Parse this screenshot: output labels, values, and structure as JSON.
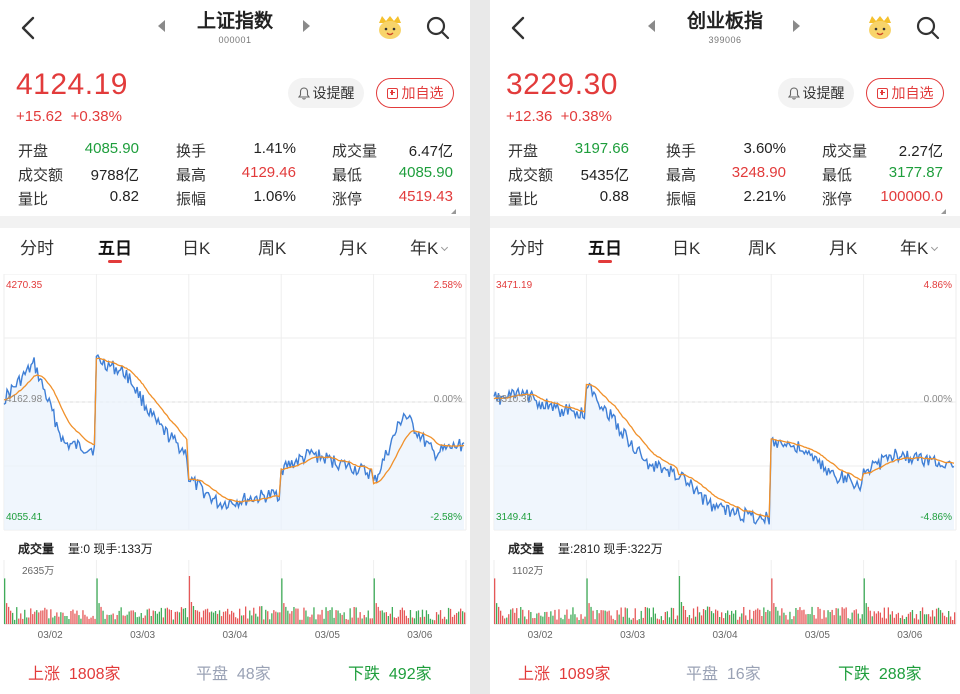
{
  "panels": [
    {
      "title": "上证指数",
      "code": "000001",
      "price": "4124.19",
      "change": "+15.62",
      "change_pct": "+0.38%",
      "remind_label": "设提醒",
      "addfav_label": "加自选",
      "stats": [
        {
          "label": "开盘",
          "value": "4085.90",
          "color": "green"
        },
        {
          "label": "换手",
          "value": "1.41%",
          "color": "dark"
        },
        {
          "label": "成交量",
          "value": "6.47亿",
          "color": "dark"
        },
        {
          "label": "成交额",
          "value": "9788亿",
          "color": "dark"
        },
        {
          "label": "最高",
          "value": "4129.46",
          "color": "red"
        },
        {
          "label": "最低",
          "value": "4085.90",
          "color": "green"
        },
        {
          "label": "量比",
          "value": "0.82",
          "color": "dark"
        },
        {
          "label": "振幅",
          "value": "1.06%",
          "color": "dark"
        },
        {
          "label": "涨停",
          "value": "4519.43",
          "color": "red"
        }
      ],
      "tabs": [
        "分时",
        "五日",
        "日K",
        "周K",
        "月K",
        "年K"
      ],
      "active_tab": 1,
      "chart_labels": {
        "y_top": "4270.35",
        "y_mid": "4162.98",
        "y_bottom": "4055.41",
        "pct_top": "2.58%",
        "pct_mid": "0.00%",
        "pct_bottom": "-2.58%"
      },
      "volume_title": "成交量",
      "volume_info": "量:0 现手:133万",
      "volume_max": "2635万",
      "dates": [
        "03/02",
        "03/03",
        "03/04",
        "03/05",
        "03/06"
      ],
      "up_label": "上涨",
      "up_count": "1808家",
      "flat_label": "平盘",
      "flat_count": "48家",
      "down_label": "下跌",
      "down_count": "492家"
    },
    {
      "title": "创业板指",
      "code": "399006",
      "price": "3229.30",
      "change": "+12.36",
      "change_pct": "+0.38%",
      "remind_label": "设提醒",
      "addfav_label": "加自选",
      "stats": [
        {
          "label": "开盘",
          "value": "3197.66",
          "color": "green"
        },
        {
          "label": "换手",
          "value": "3.60%",
          "color": "dark"
        },
        {
          "label": "成交量",
          "value": "2.27亿",
          "color": "dark"
        },
        {
          "label": "成交额",
          "value": "5435亿",
          "color": "dark"
        },
        {
          "label": "最高",
          "value": "3248.90",
          "color": "red"
        },
        {
          "label": "最低",
          "value": "3177.87",
          "color": "green"
        },
        {
          "label": "量比",
          "value": "0.88",
          "color": "dark"
        },
        {
          "label": "振幅",
          "value": "2.21%",
          "color": "dark"
        },
        {
          "label": "涨停",
          "value": "100000.0",
          "color": "red"
        }
      ],
      "tabs": [
        "分时",
        "五日",
        "日K",
        "周K",
        "月K",
        "年K"
      ],
      "active_tab": 1,
      "chart_labels": {
        "y_top": "3471.19",
        "y_mid": "3310.30",
        "y_bottom": "3149.41",
        "pct_top": "4.86%",
        "pct_mid": "0.00%",
        "pct_bottom": "-4.86%"
      },
      "volume_title": "成交量",
      "volume_info": "量:2810 现手:322万",
      "volume_max": "1102万",
      "dates": [
        "03/02",
        "03/03",
        "03/04",
        "03/05",
        "03/06"
      ],
      "up_label": "上涨",
      "up_count": "1089家",
      "flat_label": "平盘",
      "flat_count": "16家",
      "down_label": "下跌",
      "down_count": "288家"
    }
  ],
  "colors": {
    "up": "#e23b3b",
    "down": "#1e9e3c",
    "price_line": "#3f7fd6",
    "avg_line": "#f0902a",
    "flat": "#9aa2b5"
  },
  "icons": [
    "back-icon",
    "prev-arrow-icon",
    "next-arrow-icon",
    "mascot-icon",
    "search-icon",
    "bell-icon",
    "add-icon",
    "chevron-down-icon"
  ]
}
